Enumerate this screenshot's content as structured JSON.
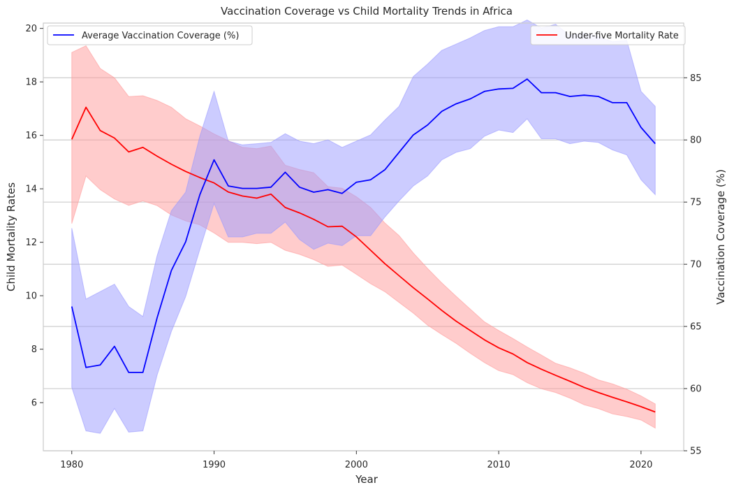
{
  "chart_data": {
    "type": "line",
    "title": "Vaccination Coverage vs Child Mortality Trends in Africa",
    "xlabel": "Year",
    "ylabel_left": "Child Mortality Rates",
    "ylabel_right": "Vaccination Coverage (%)",
    "xlim": [
      1978,
      2023
    ],
    "ylim_left": [
      4.2,
      20.2
    ],
    "ylim_right": [
      55,
      89.4
    ],
    "x_ticks": [
      1980,
      1990,
      2000,
      2010,
      2020
    ],
    "y_ticks_left": [
      6,
      8,
      10,
      12,
      14,
      16,
      18,
      20
    ],
    "y_ticks_right": [
      55,
      60,
      65,
      70,
      75,
      80,
      85
    ],
    "grid": "right-axis horizontal",
    "x": [
      1980,
      1981,
      1982,
      1983,
      1984,
      1985,
      1986,
      1987,
      1988,
      1989,
      1990,
      1991,
      1992,
      1993,
      1994,
      1995,
      1996,
      1997,
      1998,
      1999,
      2000,
      2001,
      2002,
      2003,
      2004,
      2005,
      2006,
      2007,
      2008,
      2009,
      2010,
      2011,
      2012,
      2013,
      2014,
      2015,
      2016,
      2017,
      2018,
      2019,
      2020,
      2021
    ],
    "series": [
      {
        "name": "Under-five Mortality Rate",
        "axis": "left",
        "color": "#ff0000",
        "band_color": "#ff9999",
        "values": [
          15.85,
          17.05,
          16.18,
          15.9,
          15.38,
          15.55,
          15.22,
          14.92,
          14.65,
          14.42,
          14.22,
          13.88,
          13.73,
          13.65,
          13.8,
          13.3,
          13.1,
          12.86,
          12.58,
          12.6,
          12.2,
          11.7,
          11.2,
          10.75,
          10.3,
          9.88,
          9.45,
          9.05,
          8.7,
          8.35,
          8.05,
          7.82,
          7.5,
          7.25,
          7.02,
          6.8,
          6.57,
          6.38,
          6.2,
          6.03,
          5.85,
          5.65
        ],
        "lower": [
          12.7,
          14.48,
          13.97,
          13.62,
          13.38,
          13.55,
          13.37,
          13.02,
          12.8,
          12.65,
          12.35,
          12.0,
          12.0,
          11.95,
          12.0,
          11.7,
          11.55,
          11.35,
          11.1,
          11.15,
          10.8,
          10.45,
          10.15,
          9.75,
          9.35,
          8.9,
          8.55,
          8.22,
          7.85,
          7.5,
          7.2,
          7.05,
          6.75,
          6.52,
          6.38,
          6.17,
          5.92,
          5.78,
          5.58,
          5.48,
          5.35,
          5.05
        ],
        "upper": [
          19.1,
          19.35,
          18.5,
          18.15,
          17.45,
          17.48,
          17.3,
          17.05,
          16.62,
          16.35,
          16.05,
          15.8,
          15.55,
          15.5,
          15.6,
          14.88,
          14.72,
          14.6,
          14.08,
          14.02,
          13.7,
          13.3,
          12.72,
          12.25,
          11.6,
          11.02,
          10.48,
          9.98,
          9.5,
          9.02,
          8.7,
          8.4,
          8.08,
          7.78,
          7.47,
          7.3,
          7.1,
          6.85,
          6.7,
          6.5,
          6.25,
          5.95
        ]
      },
      {
        "name": "Average Vaccination Coverage (%)",
        "axis": "right",
        "color": "#0000ff",
        "band_color": "#9999ff",
        "values": [
          66.6,
          61.7,
          61.9,
          63.4,
          61.3,
          61.3,
          65.7,
          69.5,
          71.8,
          75.6,
          78.4,
          76.3,
          76.1,
          76.1,
          76.2,
          77.4,
          76.2,
          75.8,
          76.0,
          75.7,
          76.6,
          76.8,
          77.6,
          79.0,
          80.4,
          81.2,
          82.3,
          82.9,
          83.3,
          83.9,
          84.1,
          84.15,
          84.9,
          83.8,
          83.8,
          83.5,
          83.6,
          83.5,
          83.0,
          83.0,
          81.0,
          79.7
        ],
        "lower": [
          60.1,
          56.6,
          56.4,
          58.4,
          56.5,
          56.6,
          61.1,
          64.6,
          67.4,
          71.2,
          74.9,
          72.2,
          72.2,
          72.5,
          72.5,
          73.4,
          72.0,
          71.2,
          71.7,
          71.5,
          72.3,
          72.3,
          73.8,
          75.1,
          76.3,
          77.1,
          78.4,
          79.0,
          79.3,
          80.3,
          80.8,
          80.6,
          81.7,
          80.1,
          80.1,
          79.7,
          79.9,
          79.8,
          79.2,
          78.8,
          76.8,
          75.6
        ],
        "upper": [
          72.9,
          67.2,
          67.8,
          68.4,
          66.6,
          65.8,
          70.7,
          74.3,
          75.8,
          80.3,
          83.9,
          79.9,
          79.6,
          79.7,
          79.8,
          80.5,
          79.9,
          79.7,
          80.0,
          79.4,
          79.9,
          80.4,
          81.6,
          82.7,
          85.1,
          86.1,
          87.2,
          87.7,
          88.2,
          88.8,
          89.1,
          89.1,
          89.65,
          89.0,
          89.3,
          88.4,
          88.6,
          88.3,
          87.9,
          88.0,
          83.9,
          82.7
        ]
      }
    ],
    "legends": [
      {
        "placement": "upper-left",
        "label": "Average Vaccination Coverage (%)",
        "color": "#0000ff"
      },
      {
        "placement": "upper-right",
        "label": "Under-five Mortality Rate",
        "color": "#ff0000"
      }
    ]
  }
}
